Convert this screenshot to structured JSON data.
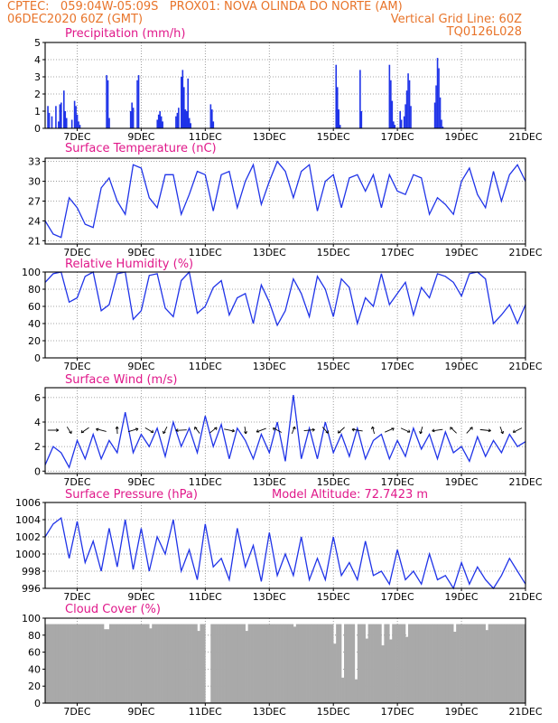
{
  "header": {
    "line1_left": "CPTEC:   059:04W-05:09S   PROX01: NOVA OLINDA DO NORTE (AM)",
    "line2_left": "06DEC2020 60Z (GMT)",
    "line2_right": "Vertical Grid Line: 60Z",
    "line3_right": "TQ0126L028"
  },
  "x_ticks": [
    "7DEC",
    "9DEC",
    "11DEC",
    "13DEC",
    "15DEC",
    "17DEC",
    "19DEC",
    "21DEC"
  ],
  "colors": {
    "title": "#e0188a",
    "header": "#e8742a",
    "series": "#1f33e8",
    "cloud": "#a9a9a9"
  },
  "chart_data": [
    {
      "type": "bar",
      "title": "Precipitation (mm/h)",
      "xlim": [
        0,
        360
      ],
      "ylim": [
        0,
        5
      ],
      "yticks": [
        0,
        1,
        2,
        3,
        4,
        5
      ],
      "x_unit": "hours since 06DEC2020 00Z",
      "x": [
        2,
        3,
        5,
        8,
        10,
        11,
        12,
        14,
        15,
        16,
        20,
        22,
        23,
        24,
        25,
        26,
        46,
        47,
        48,
        64,
        65,
        66,
        69,
        70,
        84,
        85,
        86,
        87,
        88,
        98,
        99,
        100,
        102,
        103,
        104,
        105,
        106,
        107,
        108,
        109,
        124,
        125,
        126,
        218,
        219,
        220,
        221,
        236,
        237,
        258,
        259,
        260,
        261,
        262,
        266,
        267,
        269,
        270,
        271,
        272,
        273,
        274,
        292,
        293,
        294,
        295,
        296,
        297,
        298
      ],
      "values": [
        1.3,
        0.9,
        0.7,
        1.3,
        0.4,
        1.4,
        1.5,
        2.2,
        1.0,
        0.6,
        0.5,
        1.6,
        1.3,
        0.8,
        0.4,
        0.2,
        3.1,
        2.8,
        0.6,
        1.0,
        1.5,
        1.2,
        2.8,
        3.1,
        0.5,
        0.8,
        1.0,
        0.7,
        0.4,
        0.7,
        0.9,
        1.2,
        3.0,
        3.4,
        2.4,
        1.1,
        1.0,
        2.9,
        0.6,
        0.3,
        1.4,
        1.1,
        0.4,
        3.7,
        2.4,
        1.1,
        0.2,
        3.4,
        1.0,
        3.7,
        2.8,
        1.6,
        0.4,
        0.2,
        1.0,
        0.5,
        0.7,
        1.4,
        2.2,
        3.2,
        2.8,
        1.3,
        1.5,
        2.5,
        4.1,
        3.5,
        1.8,
        0.5,
        0.1
      ]
    },
    {
      "type": "line",
      "title": "Surface Temperature (nC)",
      "xlim": [
        0,
        360
      ],
      "ylim": [
        20.5,
        33.5
      ],
      "yticks": [
        21,
        24,
        27,
        30,
        33
      ],
      "x": [
        0,
        6,
        12,
        18,
        24,
        30,
        36,
        42,
        48,
        54,
        60,
        66,
        72,
        78,
        84,
        90,
        96,
        102,
        108,
        114,
        120,
        126,
        132,
        138,
        144,
        150,
        156,
        162,
        168,
        174,
        180,
        186,
        192,
        198,
        204,
        210,
        216,
        222,
        228,
        234,
        240,
        246,
        252,
        258,
        264,
        270,
        276,
        282,
        288,
        294,
        300,
        306,
        312,
        318,
        324,
        330,
        336,
        342,
        348,
        354,
        360
      ],
      "y": [
        24,
        22,
        21.5,
        27.5,
        26,
        23.5,
        23,
        29,
        30.5,
        27,
        25,
        32.5,
        32,
        27.5,
        26,
        31,
        31,
        25,
        28,
        31.5,
        31,
        25.5,
        31,
        31.5,
        26,
        30,
        32.5,
        26.5,
        30,
        33,
        31.5,
        27.5,
        31.5,
        32.5,
        25.5,
        30,
        31,
        26,
        30.5,
        31,
        28.5,
        31,
        26,
        31,
        28.5,
        28,
        31,
        30.5,
        25,
        27.5,
        26.5,
        25,
        30,
        32,
        28,
        26,
        31.5,
        27,
        31,
        32.5,
        30
      ]
    },
    {
      "type": "line",
      "title": "Relative Humidity (%)",
      "xlim": [
        0,
        360
      ],
      "ylim": [
        0,
        100
      ],
      "yticks": [
        0,
        20,
        40,
        60,
        80,
        100
      ],
      "x": [
        0,
        6,
        12,
        18,
        24,
        30,
        36,
        42,
        48,
        54,
        60,
        66,
        72,
        78,
        84,
        90,
        96,
        102,
        108,
        114,
        120,
        126,
        132,
        138,
        144,
        150,
        156,
        162,
        168,
        174,
        180,
        186,
        192,
        198,
        204,
        210,
        216,
        222,
        228,
        234,
        240,
        246,
        252,
        258,
        264,
        270,
        276,
        282,
        288,
        294,
        300,
        306,
        312,
        318,
        324,
        330,
        336,
        342,
        348,
        354,
        360
      ],
      "y": [
        88,
        98,
        100,
        65,
        70,
        95,
        100,
        55,
        62,
        98,
        100,
        45,
        55,
        96,
        98,
        58,
        48,
        90,
        100,
        52,
        60,
        82,
        90,
        50,
        70,
        75,
        40,
        85,
        65,
        38,
        55,
        92,
        75,
        48,
        95,
        80,
        48,
        92,
        82,
        40,
        70,
        60,
        98,
        62,
        75,
        88,
        50,
        82,
        70,
        98,
        95,
        88,
        72,
        98,
        100,
        92,
        40,
        50,
        62,
        40,
        62
      ]
    },
    {
      "type": "line",
      "title": "Surface Wind (m/s)",
      "xlim": [
        0,
        360
      ],
      "ylim": [
        -0.2,
        6.8
      ],
      "yticks": [
        0,
        2,
        4,
        6
      ],
      "x": [
        0,
        6,
        12,
        18,
        24,
        30,
        36,
        42,
        48,
        54,
        60,
        66,
        72,
        78,
        84,
        90,
        96,
        102,
        108,
        114,
        120,
        126,
        132,
        138,
        144,
        150,
        156,
        162,
        168,
        174,
        180,
        186,
        192,
        198,
        204,
        210,
        216,
        222,
        228,
        234,
        240,
        246,
        252,
        258,
        264,
        270,
        276,
        282,
        288,
        294,
        300,
        306,
        312,
        318,
        324,
        330,
        336,
        342,
        348,
        354,
        360
      ],
      "y": [
        0.5,
        2.0,
        1.5,
        0.3,
        2.5,
        1.0,
        3.0,
        1.0,
        2.5,
        1.5,
        4.8,
        1.5,
        3.0,
        2.0,
        3.5,
        1.2,
        4.0,
        2.0,
        3.5,
        1.5,
        4.5,
        2.0,
        3.8,
        1.0,
        3.5,
        2.5,
        1.0,
        3.0,
        1.5,
        4.0,
        0.8,
        6.2,
        1.0,
        3.5,
        1.0,
        4.0,
        1.5,
        3.0,
        1.2,
        3.5,
        1.0,
        2.5,
        3.0,
        1.0,
        2.5,
        1.2,
        3.5,
        1.8,
        3.0,
        1.0,
        3.2,
        1.5,
        2.0,
        0.8,
        2.8,
        1.2,
        2.5,
        1.5,
        3.0,
        2.0,
        2.4
      ]
    },
    {
      "type": "line",
      "title": "Surface Pressure (hPa)",
      "annotation": "Model Altitude: 72.7423 m",
      "xlim": [
        0,
        360
      ],
      "ylim": [
        996,
        1006
      ],
      "yticks": [
        996,
        998,
        1000,
        1002,
        1004,
        1006
      ],
      "x": [
        0,
        6,
        12,
        18,
        24,
        30,
        36,
        42,
        48,
        54,
        60,
        66,
        72,
        78,
        84,
        90,
        96,
        102,
        108,
        114,
        120,
        126,
        132,
        138,
        144,
        150,
        156,
        162,
        168,
        174,
        180,
        186,
        192,
        198,
        204,
        210,
        216,
        222,
        228,
        234,
        240,
        246,
        252,
        258,
        264,
        270,
        276,
        282,
        288,
        294,
        300,
        306,
        312,
        318,
        324,
        330,
        336,
        342,
        348,
        354,
        360
      ],
      "y": [
        1002,
        1003.5,
        1004.2,
        999.5,
        1003.8,
        999,
        1001.5,
        998,
        1003,
        998.5,
        1004,
        998.2,
        1003,
        998,
        1002,
        1000,
        1004,
        998,
        1000.5,
        997,
        1003.5,
        998.5,
        999.5,
        997,
        1003,
        998.5,
        1001,
        996.8,
        1002.5,
        997.5,
        1000,
        997.5,
        1002,
        997,
        999.5,
        997,
        1002,
        997.5,
        999,
        997,
        1001.5,
        997.5,
        998,
        996.5,
        1000.5,
        997,
        998,
        996.5,
        1000,
        997,
        997.5,
        996,
        999,
        996.5,
        998.5,
        997,
        996,
        997.5,
        999.5,
        998,
        996.5
      ]
    },
    {
      "type": "bar",
      "title": "Cloud Cover (%)",
      "xlim": [
        0,
        360
      ],
      "ylim": [
        0,
        100
      ],
      "yticks": [
        0,
        20,
        40,
        60,
        80,
        100
      ],
      "base_value": 93,
      "dips": [
        {
          "x": 45,
          "value": 87
        },
        {
          "x": 78,
          "value": 88
        },
        {
          "x": 114,
          "value": 85
        },
        {
          "x": 121,
          "value": 1
        },
        {
          "x": 150,
          "value": 85
        },
        {
          "x": 186,
          "value": 90
        },
        {
          "x": 216,
          "value": 70
        },
        {
          "x": 222,
          "value": 30
        },
        {
          "x": 232,
          "value": 28
        },
        {
          "x": 240,
          "value": 76
        },
        {
          "x": 252,
          "value": 68
        },
        {
          "x": 258,
          "value": 75
        },
        {
          "x": 270,
          "value": 78
        },
        {
          "x": 306,
          "value": 84
        },
        {
          "x": 330,
          "value": 86
        }
      ]
    }
  ]
}
